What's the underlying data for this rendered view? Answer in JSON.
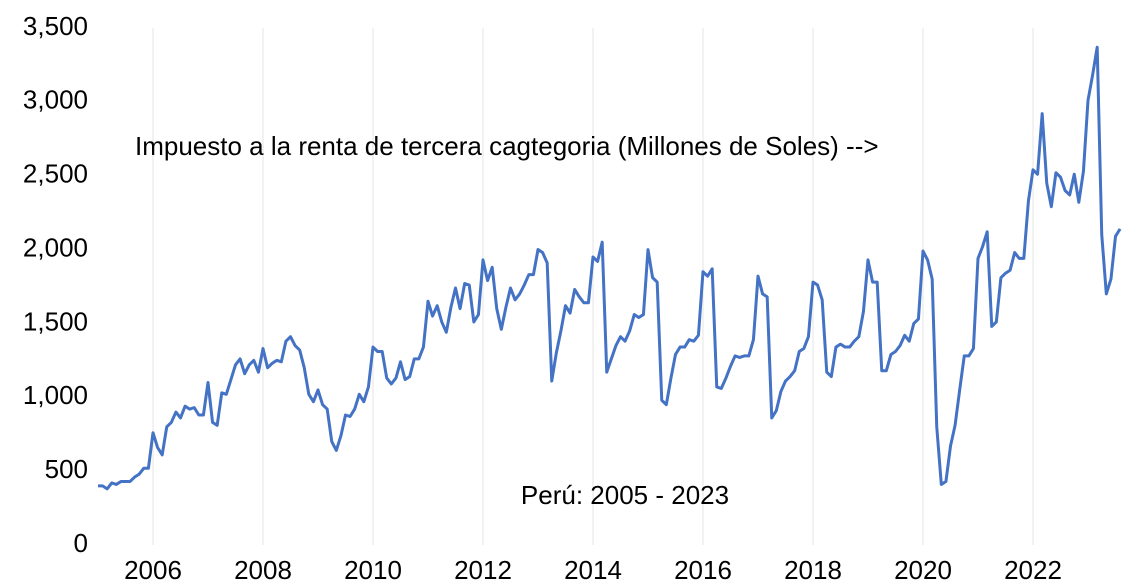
{
  "chart_data": {
    "type": "line",
    "annotations": [
      "Impuesto a la renta de tercera cagtegoria (Millones de Soles) -->",
      "Perú: 2005 - 2023"
    ],
    "x": [
      2005,
      2005.083,
      2005.167,
      2005.25,
      2005.333,
      2005.417,
      2005.5,
      2005.583,
      2005.667,
      2005.75,
      2005.833,
      2005.917,
      2006,
      2006.083,
      2006.167,
      2006.25,
      2006.333,
      2006.417,
      2006.5,
      2006.583,
      2006.667,
      2006.75,
      2006.833,
      2006.917,
      2007,
      2007.083,
      2007.167,
      2007.25,
      2007.333,
      2007.417,
      2007.5,
      2007.583,
      2007.667,
      2007.75,
      2007.833,
      2007.917,
      2008,
      2008.083,
      2008.167,
      2008.25,
      2008.333,
      2008.417,
      2008.5,
      2008.583,
      2008.667,
      2008.75,
      2008.833,
      2008.917,
      2009,
      2009.083,
      2009.167,
      2009.25,
      2009.333,
      2009.417,
      2009.5,
      2009.583,
      2009.667,
      2009.75,
      2009.833,
      2009.917,
      2010,
      2010.083,
      2010.167,
      2010.25,
      2010.333,
      2010.417,
      2010.5,
      2010.583,
      2010.667,
      2010.75,
      2010.833,
      2010.917,
      2011,
      2011.083,
      2011.167,
      2011.25,
      2011.333,
      2011.417,
      2011.5,
      2011.583,
      2011.667,
      2011.75,
      2011.833,
      2011.917,
      2012,
      2012.083,
      2012.167,
      2012.25,
      2012.333,
      2012.417,
      2012.5,
      2012.583,
      2012.667,
      2012.75,
      2012.833,
      2012.917,
      2013,
      2013.083,
      2013.167,
      2013.25,
      2013.333,
      2013.417,
      2013.5,
      2013.583,
      2013.667,
      2013.75,
      2013.833,
      2013.917,
      2014,
      2014.083,
      2014.167,
      2014.25,
      2014.333,
      2014.417,
      2014.5,
      2014.583,
      2014.667,
      2014.75,
      2014.833,
      2014.917,
      2015,
      2015.083,
      2015.167,
      2015.25,
      2015.333,
      2015.417,
      2015.5,
      2015.583,
      2015.667,
      2015.75,
      2015.833,
      2015.917,
      2016,
      2016.083,
      2016.167,
      2016.25,
      2016.333,
      2016.417,
      2016.5,
      2016.583,
      2016.667,
      2016.75,
      2016.833,
      2016.917,
      2017,
      2017.083,
      2017.167,
      2017.25,
      2017.333,
      2017.417,
      2017.5,
      2017.583,
      2017.667,
      2017.75,
      2017.833,
      2017.917,
      2018,
      2018.083,
      2018.167,
      2018.25,
      2018.333,
      2018.417,
      2018.5,
      2018.583,
      2018.667,
      2018.75,
      2018.833,
      2018.917,
      2019,
      2019.083,
      2019.167,
      2019.25,
      2019.333,
      2019.417,
      2019.5,
      2019.583,
      2019.667,
      2019.75,
      2019.833,
      2019.917,
      2020,
      2020.083,
      2020.167,
      2020.25,
      2020.333,
      2020.417,
      2020.5,
      2020.583,
      2020.667,
      2020.75,
      2020.833,
      2020.917,
      2021,
      2021.083,
      2021.167,
      2021.25,
      2021.333,
      2021.417,
      2021.5,
      2021.583,
      2021.667,
      2021.75,
      2021.833,
      2021.917,
      2022,
      2022.083,
      2022.167,
      2022.25,
      2022.333,
      2022.417,
      2022.5,
      2022.583,
      2022.667,
      2022.75,
      2022.833,
      2022.917,
      2023,
      2023.083,
      2023.167,
      2023.25,
      2023.333,
      2023.417,
      2023.5,
      2023.583
    ],
    "values": [
      400,
      400,
      380,
      420,
      410,
      430,
      430,
      430,
      460,
      480,
      520,
      520,
      760,
      660,
      610,
      800,
      830,
      900,
      860,
      940,
      920,
      930,
      880,
      880,
      1100,
      830,
      810,
      1030,
      1020,
      1120,
      1220,
      1260,
      1160,
      1220,
      1250,
      1170,
      1330,
      1200,
      1230,
      1250,
      1240,
      1380,
      1410,
      1350,
      1320,
      1200,
      1020,
      970,
      1050,
      950,
      920,
      700,
      640,
      740,
      880,
      870,
      920,
      1020,
      970,
      1070,
      1340,
      1310,
      1310,
      1130,
      1090,
      1130,
      1240,
      1120,
      1140,
      1260,
      1260,
      1340,
      1650,
      1550,
      1620,
      1510,
      1440,
      1610,
      1740,
      1600,
      1770,
      1760,
      1510,
      1560,
      1930,
      1790,
      1880,
      1600,
      1460,
      1610,
      1740,
      1660,
      1700,
      1760,
      1830,
      1830,
      2000,
      1980,
      1910,
      1110,
      1300,
      1450,
      1620,
      1570,
      1730,
      1680,
      1640,
      1640,
      1950,
      1920,
      2050,
      1170,
      1260,
      1350,
      1410,
      1380,
      1450,
      1560,
      1540,
      1560,
      2000,
      1810,
      1780,
      980,
      950,
      1130,
      1290,
      1340,
      1340,
      1390,
      1380,
      1420,
      1850,
      1820,
      1870,
      1070,
      1060,
      1130,
      1210,
      1280,
      1270,
      1280,
      1280,
      1390,
      1820,
      1700,
      1680,
      860,
      910,
      1040,
      1110,
      1140,
      1180,
      1310,
      1330,
      1410,
      1780,
      1760,
      1660,
      1170,
      1140,
      1340,
      1360,
      1340,
      1340,
      1380,
      1410,
      1580,
      1930,
      1780,
      1780,
      1180,
      1180,
      1290,
      1310,
      1350,
      1420,
      1380,
      1500,
      1530,
      1990,
      1930,
      1800,
      800,
      410,
      430,
      670,
      810,
      1050,
      1280,
      1280,
      1330,
      1940,
      2020,
      2120,
      1480,
      1510,
      1810,
      1840,
      1860,
      1980,
      1940,
      1940,
      2330,
      2540,
      2510,
      2920,
      2450,
      2290,
      2520,
      2490,
      2400,
      2370,
      2510,
      2320,
      2530,
      3010,
      3180,
      3370,
      2100,
      1700,
      1800,
      2090,
      2140
    ],
    "color": "#4472c4",
    "xlim": [
      2005,
      2023.6
    ],
    "xticks": [
      2006,
      2008,
      2010,
      2012,
      2014,
      2016,
      2018,
      2020,
      2022
    ],
    "ylim": [
      0,
      3500
    ],
    "yticks": [
      0,
      500,
      {
        "value": 1000,
        "label": "1,000"
      },
      {
        "value": 1500,
        "label": "1,500"
      },
      {
        "value": 2000,
        "label": "2,000"
      },
      {
        "value": 2500,
        "label": "2,500"
      },
      {
        "value": 3000,
        "label": "3,000"
      },
      {
        "value": 3500,
        "label": "3,500"
      }
    ],
    "grid": true
  }
}
